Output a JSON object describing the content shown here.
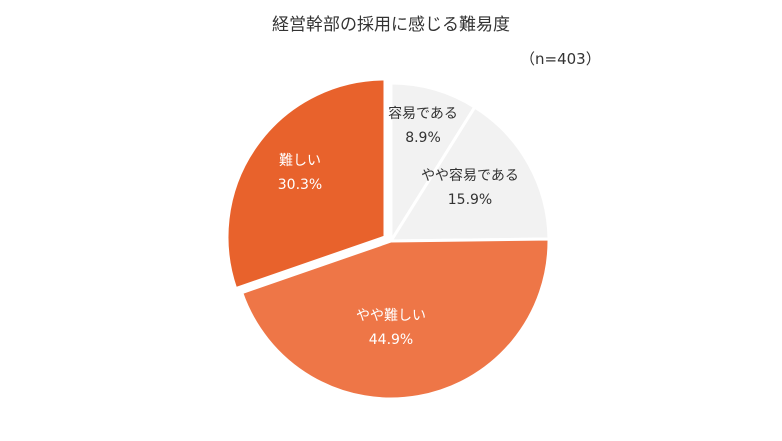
{
  "chart_data": {
    "type": "pie",
    "title": "経営幹部の採用に感じる難易度",
    "subtitle": "（n=403）",
    "slices": [
      {
        "label": "容易である",
        "value": 8.9,
        "value_label": "8.9%",
        "color": "#f2f2f2",
        "text_color": "#333333"
      },
      {
        "label": "やや容易である",
        "value": 15.9,
        "value_label": "15.9%",
        "color": "#f2f2f2",
        "text_color": "#333333"
      },
      {
        "label": "やや難しい",
        "value": 44.9,
        "value_label": "44.9%",
        "color": "#ee7647",
        "text_color": "#ffffff"
      },
      {
        "label": "難しい",
        "value": 30.3,
        "value_label": "30.3%",
        "color": "#e8622c",
        "text_color": "#ffffff"
      }
    ]
  }
}
